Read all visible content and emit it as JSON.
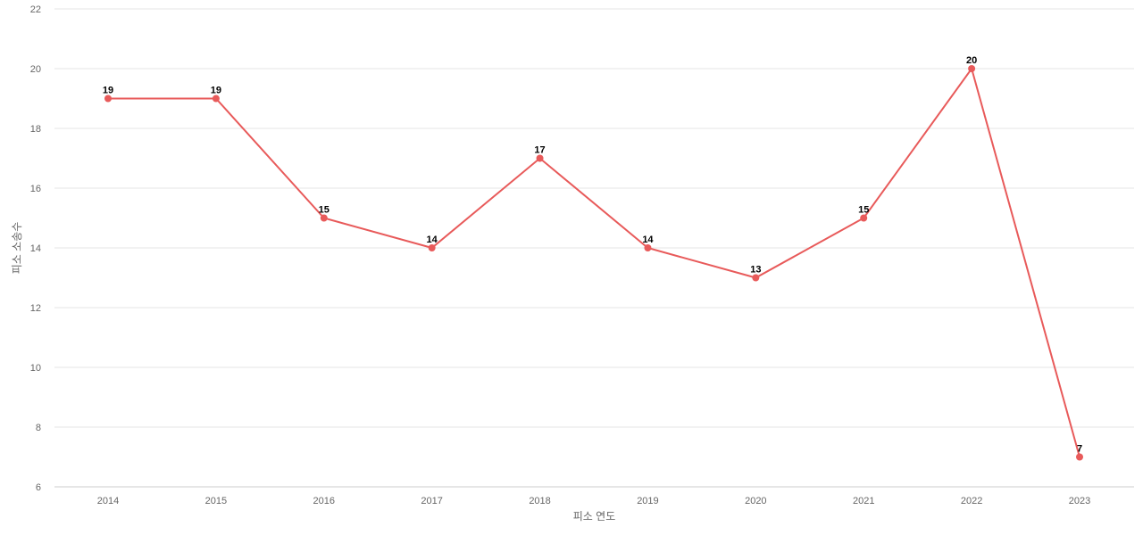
{
  "chart_data": {
    "type": "line",
    "title": "",
    "xlabel": "피소 연도",
    "ylabel": "피소 소송수",
    "categories": [
      "2014",
      "2015",
      "2016",
      "2017",
      "2018",
      "2019",
      "2020",
      "2021",
      "2022",
      "2023"
    ],
    "series": [
      {
        "values": [
          19,
          19,
          15,
          14,
          17,
          14,
          13,
          15,
          20,
          7
        ]
      }
    ],
    "ylim": [
      6,
      22
    ],
    "yticks": [
      6,
      8,
      10,
      12,
      14,
      16,
      18,
      20,
      22
    ],
    "grid": true,
    "legend": "none",
    "data_labels": true
  },
  "colors": {
    "line": "#e85a5a",
    "grid": "#e6e6e6",
    "axis": "#cccccc",
    "tick_text": "#666666",
    "label_text": "#000000"
  }
}
